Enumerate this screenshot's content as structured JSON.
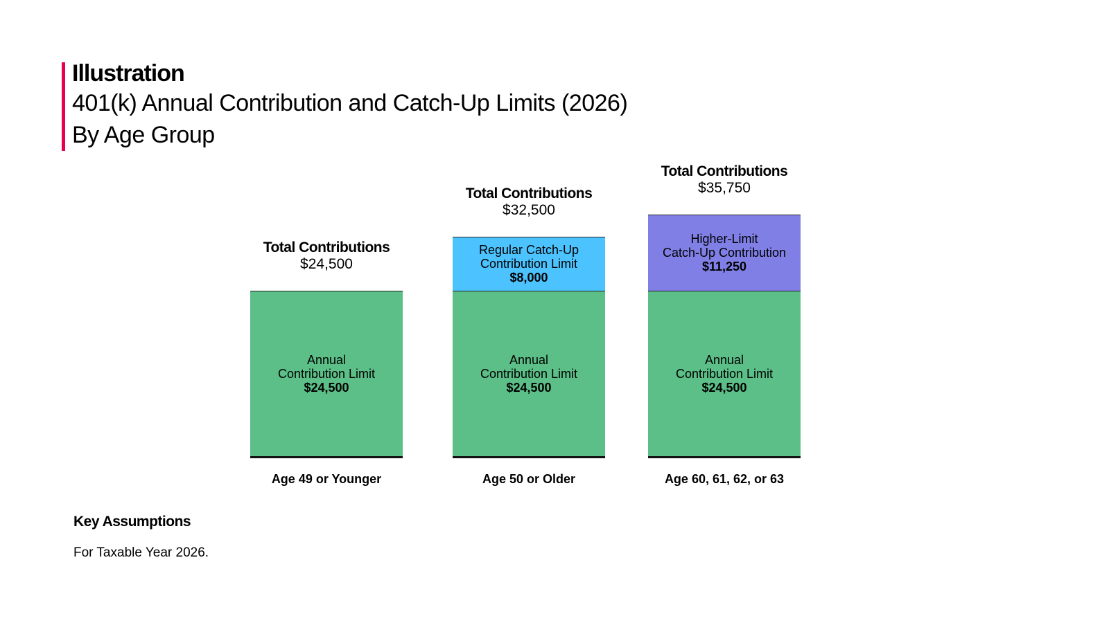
{
  "header": {
    "label": "Illustration",
    "title": "401(k) Annual Contribution and Catch-Up Limits (2026)",
    "subtitle": "By Age Group",
    "accent": "#e8004e"
  },
  "chart_data": {
    "type": "bar",
    "stacked": true,
    "categories": [
      "Age 49 or Younger",
      "Age 50 or Older",
      "Age 60, 61, 62, or 63"
    ],
    "series": [
      {
        "name": "Annual Contribution Limit",
        "color": "#5bbf87",
        "values": [
          24500,
          24500,
          24500
        ],
        "labels": [
          "$24,500",
          "$24,500",
          "$24,500"
        ]
      },
      {
        "name": "Catch-Up",
        "color": "#4cc3ff",
        "values": [
          0,
          8000,
          11250
        ],
        "labels": [
          "",
          "$8,000",
          "$11,250"
        ],
        "segment_names": [
          "",
          "Regular Catch-Up Contribution Limit",
          "Higher-Limit Catch-Up Contribution"
        ],
        "segment_name_lines": [
          [],
          [
            "Regular Catch-Up",
            "Contribution Limit"
          ],
          [
            "Higher-Limit",
            "Catch-Up Contribution"
          ]
        ],
        "colors": [
          "#4cc3ff",
          "#4cc3ff",
          "#7f7fe6"
        ]
      }
    ],
    "annual_name_lines": [
      "Annual",
      "Contribution Limit"
    ],
    "totals_label": "Total Contributions",
    "totals": [
      "$24,500",
      "$32,500",
      "$35,750"
    ],
    "ylim": [
      0,
      36000
    ],
    "grid": false,
    "legend": "none"
  },
  "footer": {
    "heading": "Key Assumptions",
    "text": "For Taxable Year 2026."
  }
}
